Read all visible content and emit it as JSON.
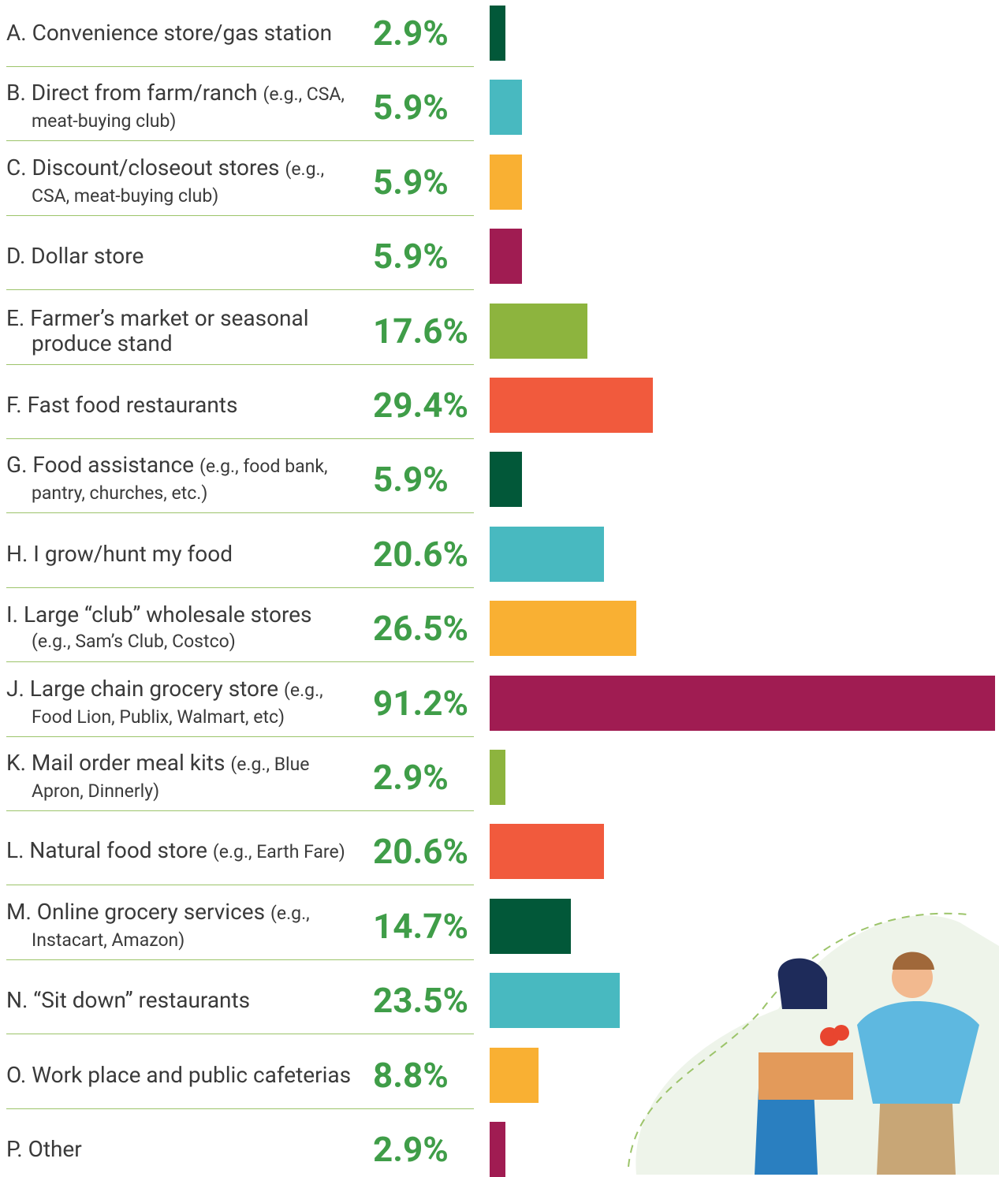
{
  "chart_data": {
    "type": "bar",
    "orientation": "horizontal",
    "categories": [
      "A. Convenience store/gas station",
      "B. Direct from farm/ranch",
      "C. Discount/closeout stores",
      "D. Dollar store",
      "E. Farmer’s market or seasonal produce stand",
      "F. Fast food restaurants",
      "G. Food assistance",
      "H. I grow/hunt my food",
      "I. Large “club” wholesale stores",
      "J. Large chain grocery store",
      "K. Mail order meal kits",
      "L. Natural food store",
      "M. Online grocery services",
      "N. “Sit down” restaurants",
      "O. Work place and public cafeterias",
      "P. Other"
    ],
    "notes": [
      null,
      "(e.g., CSA, meat-buying club)",
      "(e.g., CSA, meat-buying club)",
      null,
      null,
      null,
      "(e.g., food bank, pantry, churches, etc.)",
      null,
      "(e.g., Sam’s Club, Costco)",
      "(e.g., Food Lion, Publix, Walmart, etc)",
      "(e.g., Blue Apron, Dinnerly)",
      "(e.g., Earth Fare)",
      "(e.g., Instacart, Amazon)",
      null,
      null,
      null
    ],
    "values": [
      2.9,
      5.9,
      5.9,
      5.9,
      17.6,
      29.4,
      5.9,
      20.6,
      26.5,
      91.2,
      2.9,
      20.6,
      14.7,
      23.5,
      8.8,
      2.9
    ],
    "value_labels": [
      "2.9%",
      "5.9%",
      "5.9%",
      "5.9%",
      "17.6%",
      "29.4%",
      "5.9%",
      "20.6%",
      "26.5%",
      "91.2%",
      "2.9%",
      "20.6%",
      "14.7%",
      "23.5%",
      "8.8%",
      "2.9%"
    ],
    "colors": [
      "#025839",
      "#48b9c0",
      "#f9b033",
      "#a01c52",
      "#8db43e",
      "#f15a3d",
      "#025839",
      "#48b9c0",
      "#f9b033",
      "#a01c52",
      "#8db43e",
      "#f15a3d",
      "#025839",
      "#48b9c0",
      "#f9b033",
      "#a01c52"
    ]
  }
}
